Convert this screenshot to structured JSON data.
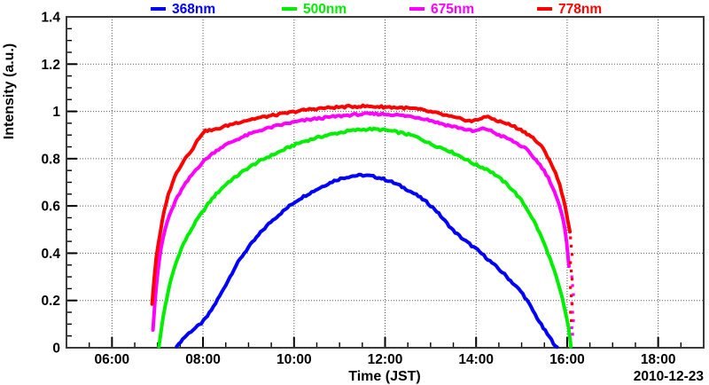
{
  "chart_data": {
    "type": "line",
    "title": "",
    "xlabel": "Time (JST)",
    "ylabel": "Intensity (a.u.)",
    "date_annotation": "2010-12-23",
    "x_domain_hours": [
      5,
      19
    ],
    "ylim": [
      0,
      1.4
    ],
    "x_ticks": [
      {
        "hour": 6,
        "label": "06:00"
      },
      {
        "hour": 8,
        "label": "08:00"
      },
      {
        "hour": 10,
        "label": "10:00"
      },
      {
        "hour": 12,
        "label": "12:00"
      },
      {
        "hour": 14,
        "label": "14:00"
      },
      {
        "hour": 16,
        "label": "16:00"
      },
      {
        "hour": 18,
        "label": "18:00"
      }
    ],
    "x_minor_step_hours": 0.5,
    "y_ticks": [
      {
        "value": 0,
        "label": "0"
      },
      {
        "value": 0.2,
        "label": "0.2"
      },
      {
        "value": 0.4,
        "label": "0.4"
      },
      {
        "value": 0.6,
        "label": "0.6"
      },
      {
        "value": 0.8,
        "label": "0.8"
      },
      {
        "value": 1,
        "label": "1"
      },
      {
        "value": 1.2,
        "label": "1.2"
      },
      {
        "value": 1.4,
        "label": "1.4"
      }
    ],
    "y_minor_step": 0.05,
    "grid": {
      "style": "dotted",
      "on_major_x": true,
      "on_major_y": true
    },
    "frame_color": "#3a3a3a",
    "grid_color": "#555555",
    "legend": {
      "position": "top",
      "entries": [
        {
          "label": "368nm",
          "color": "#0000ff"
        },
        {
          "label": "500nm",
          "color": "#00ee00"
        },
        {
          "label": "675nm",
          "color": "#ff00ff"
        },
        {
          "label": "778nm",
          "color": "#ff0000"
        }
      ]
    },
    "series": [
      {
        "name": "368nm",
        "color": "#0000ff",
        "points": [
          [
            7.42,
            0.005
          ],
          [
            7.5,
            0.025
          ],
          [
            7.62,
            0.05
          ],
          [
            7.75,
            0.072
          ],
          [
            7.88,
            0.09
          ],
          [
            8.0,
            0.11
          ],
          [
            8.12,
            0.14
          ],
          [
            8.25,
            0.18
          ],
          [
            8.4,
            0.23
          ],
          [
            8.55,
            0.285
          ],
          [
            8.7,
            0.34
          ],
          [
            8.85,
            0.385
          ],
          [
            9.0,
            0.425
          ],
          [
            9.15,
            0.46
          ],
          [
            9.3,
            0.495
          ],
          [
            9.5,
            0.535
          ],
          [
            9.7,
            0.568
          ],
          [
            9.9,
            0.6
          ],
          [
            10.1,
            0.628
          ],
          [
            10.3,
            0.65
          ],
          [
            10.5,
            0.67
          ],
          [
            10.7,
            0.69
          ],
          [
            10.9,
            0.708
          ],
          [
            11.1,
            0.72
          ],
          [
            11.3,
            0.727
          ],
          [
            11.5,
            0.73
          ],
          [
            11.7,
            0.726
          ],
          [
            11.9,
            0.718
          ],
          [
            12.1,
            0.705
          ],
          [
            12.3,
            0.688
          ],
          [
            12.5,
            0.668
          ],
          [
            12.7,
            0.645
          ],
          [
            12.9,
            0.618
          ],
          [
            13.1,
            0.585
          ],
          [
            13.3,
            0.54
          ],
          [
            13.5,
            0.495
          ],
          [
            13.7,
            0.462
          ],
          [
            13.9,
            0.432
          ],
          [
            14.05,
            0.41
          ],
          [
            14.2,
            0.385
          ],
          [
            14.4,
            0.35
          ],
          [
            14.6,
            0.315
          ],
          [
            14.8,
            0.275
          ],
          [
            15.0,
            0.235
          ],
          [
            15.15,
            0.19
          ],
          [
            15.3,
            0.14
          ],
          [
            15.45,
            0.09
          ],
          [
            15.6,
            0.048
          ],
          [
            15.7,
            0.02
          ],
          [
            15.78,
            0.003
          ]
        ]
      },
      {
        "name": "500nm",
        "color": "#00ee00",
        "points": [
          [
            7.03,
            0.005
          ],
          [
            7.07,
            0.06
          ],
          [
            7.12,
            0.125
          ],
          [
            7.18,
            0.19
          ],
          [
            7.25,
            0.25
          ],
          [
            7.32,
            0.305
          ],
          [
            7.4,
            0.355
          ],
          [
            7.48,
            0.4
          ],
          [
            7.57,
            0.44
          ],
          [
            7.67,
            0.475
          ],
          [
            7.77,
            0.51
          ],
          [
            7.88,
            0.545
          ],
          [
            8.0,
            0.578
          ],
          [
            8.12,
            0.61
          ],
          [
            8.25,
            0.642
          ],
          [
            8.4,
            0.672
          ],
          [
            8.55,
            0.7
          ],
          [
            8.7,
            0.72
          ],
          [
            8.85,
            0.742
          ],
          [
            9.0,
            0.762
          ],
          [
            9.2,
            0.785
          ],
          [
            9.4,
            0.805
          ],
          [
            9.6,
            0.822
          ],
          [
            9.8,
            0.84
          ],
          [
            10.0,
            0.858
          ],
          [
            10.2,
            0.872
          ],
          [
            10.45,
            0.886
          ],
          [
            10.7,
            0.898
          ],
          [
            10.95,
            0.908
          ],
          [
            11.2,
            0.917
          ],
          [
            11.45,
            0.923
          ],
          [
            11.7,
            0.925
          ],
          [
            11.95,
            0.922
          ],
          [
            12.2,
            0.915
          ],
          [
            12.45,
            0.905
          ],
          [
            12.65,
            0.895
          ],
          [
            12.85,
            0.878
          ],
          [
            13.0,
            0.862
          ],
          [
            13.15,
            0.852
          ],
          [
            13.35,
            0.838
          ],
          [
            13.55,
            0.82
          ],
          [
            13.75,
            0.8
          ],
          [
            13.95,
            0.778
          ],
          [
            14.1,
            0.765
          ],
          [
            14.25,
            0.755
          ],
          [
            14.4,
            0.735
          ],
          [
            14.55,
            0.712
          ],
          [
            14.7,
            0.688
          ],
          [
            14.85,
            0.658
          ],
          [
            15.0,
            0.622
          ],
          [
            15.15,
            0.578
          ],
          [
            15.3,
            0.525
          ],
          [
            15.45,
            0.462
          ],
          [
            15.6,
            0.39
          ],
          [
            15.75,
            0.305
          ],
          [
            15.88,
            0.22
          ],
          [
            15.98,
            0.135
          ],
          [
            16.04,
            0.075
          ],
          [
            16.07,
            0.03
          ],
          [
            16.08,
            0.005
          ]
        ]
      },
      {
        "name": "675nm",
        "color": "#ff00ff",
        "points": [
          [
            6.9,
            0.075
          ],
          [
            6.93,
            0.16
          ],
          [
            6.96,
            0.235
          ],
          [
            7.0,
            0.31
          ],
          [
            7.04,
            0.375
          ],
          [
            7.09,
            0.43
          ],
          [
            7.14,
            0.48
          ],
          [
            7.2,
            0.525
          ],
          [
            7.27,
            0.565
          ],
          [
            7.35,
            0.6
          ],
          [
            7.43,
            0.635
          ],
          [
            7.52,
            0.665
          ],
          [
            7.62,
            0.695
          ],
          [
            7.73,
            0.725
          ],
          [
            7.85,
            0.755
          ],
          [
            7.97,
            0.78
          ],
          [
            8.1,
            0.805
          ],
          [
            8.25,
            0.828
          ],
          [
            8.4,
            0.848
          ],
          [
            8.6,
            0.868
          ],
          [
            8.8,
            0.886
          ],
          [
            9.0,
            0.902
          ],
          [
            9.25,
            0.92
          ],
          [
            9.5,
            0.933
          ],
          [
            9.8,
            0.947
          ],
          [
            10.1,
            0.958
          ],
          [
            10.4,
            0.967
          ],
          [
            10.7,
            0.974
          ],
          [
            11.0,
            0.98
          ],
          [
            11.3,
            0.986
          ],
          [
            11.6,
            0.989
          ],
          [
            11.9,
            0.989
          ],
          [
            12.2,
            0.986
          ],
          [
            12.5,
            0.98
          ],
          [
            12.8,
            0.972
          ],
          [
            13.0,
            0.962
          ],
          [
            13.2,
            0.95
          ],
          [
            13.4,
            0.94
          ],
          [
            13.6,
            0.932
          ],
          [
            13.8,
            0.922
          ],
          [
            13.95,
            0.915
          ],
          [
            14.1,
            0.924
          ],
          [
            14.2,
            0.928
          ],
          [
            14.35,
            0.915
          ],
          [
            14.5,
            0.9
          ],
          [
            14.7,
            0.885
          ],
          [
            14.9,
            0.864
          ],
          [
            15.1,
            0.84
          ],
          [
            15.3,
            0.798
          ],
          [
            15.45,
            0.762
          ],
          [
            15.6,
            0.715
          ],
          [
            15.72,
            0.662
          ],
          [
            15.82,
            0.605
          ],
          [
            15.9,
            0.55
          ],
          [
            15.97,
            0.48
          ],
          [
            16.02,
            0.4
          ],
          [
            16.04,
            0.345
          ]
        ],
        "scatter_tail": {
          "x_hour": 16.12,
          "values": [
            0.3,
            0.263,
            0.225,
            0.188,
            0.15,
            0.115,
            0.085,
            0.057
          ]
        }
      },
      {
        "name": "778nm",
        "color": "#ff0000",
        "points": [
          [
            6.88,
            0.185
          ],
          [
            6.93,
            0.3
          ],
          [
            6.97,
            0.38
          ],
          [
            7.03,
            0.45
          ],
          [
            7.1,
            0.53
          ],
          [
            7.17,
            0.6
          ],
          [
            7.25,
            0.655
          ],
          [
            7.33,
            0.7
          ],
          [
            7.42,
            0.74
          ],
          [
            7.52,
            0.775
          ],
          [
            7.62,
            0.805
          ],
          [
            7.7,
            0.825
          ],
          [
            7.8,
            0.85
          ],
          [
            7.9,
            0.885
          ],
          [
            8.0,
            0.912
          ],
          [
            8.1,
            0.92
          ],
          [
            8.22,
            0.92
          ],
          [
            8.35,
            0.928
          ],
          [
            8.5,
            0.938
          ],
          [
            8.7,
            0.95
          ],
          [
            8.9,
            0.96
          ],
          [
            9.1,
            0.968
          ],
          [
            9.35,
            0.977
          ],
          [
            9.6,
            0.985
          ],
          [
            9.85,
            0.993
          ],
          [
            10.1,
            1.002
          ],
          [
            10.35,
            1.009
          ],
          [
            10.6,
            1.013
          ],
          [
            10.9,
            1.017
          ],
          [
            11.2,
            1.02
          ],
          [
            11.5,
            1.022
          ],
          [
            11.8,
            1.02
          ],
          [
            12.1,
            1.018
          ],
          [
            12.4,
            1.015
          ],
          [
            12.7,
            1.01
          ],
          [
            12.95,
            1.0
          ],
          [
            13.15,
            0.992
          ],
          [
            13.35,
            0.982
          ],
          [
            13.55,
            0.972
          ],
          [
            13.75,
            0.965
          ],
          [
            13.9,
            0.958
          ],
          [
            14.05,
            0.965
          ],
          [
            14.17,
            0.978
          ],
          [
            14.32,
            0.972
          ],
          [
            14.5,
            0.958
          ],
          [
            14.65,
            0.95
          ],
          [
            14.85,
            0.935
          ],
          [
            15.05,
            0.915
          ],
          [
            15.25,
            0.888
          ],
          [
            15.45,
            0.848
          ],
          [
            15.6,
            0.8
          ],
          [
            15.72,
            0.75
          ],
          [
            15.82,
            0.7
          ],
          [
            15.9,
            0.645
          ],
          [
            15.97,
            0.585
          ],
          [
            16.03,
            0.525
          ],
          [
            16.06,
            0.49
          ]
        ],
        "scatter_tail": {
          "x_hour": 16.09,
          "values": [
            0.465,
            0.43,
            0.395,
            0.36,
            0.325,
            0.29,
            0.255,
            0.22,
            0.185,
            0.15,
            0.115
          ]
        }
      }
    ]
  }
}
